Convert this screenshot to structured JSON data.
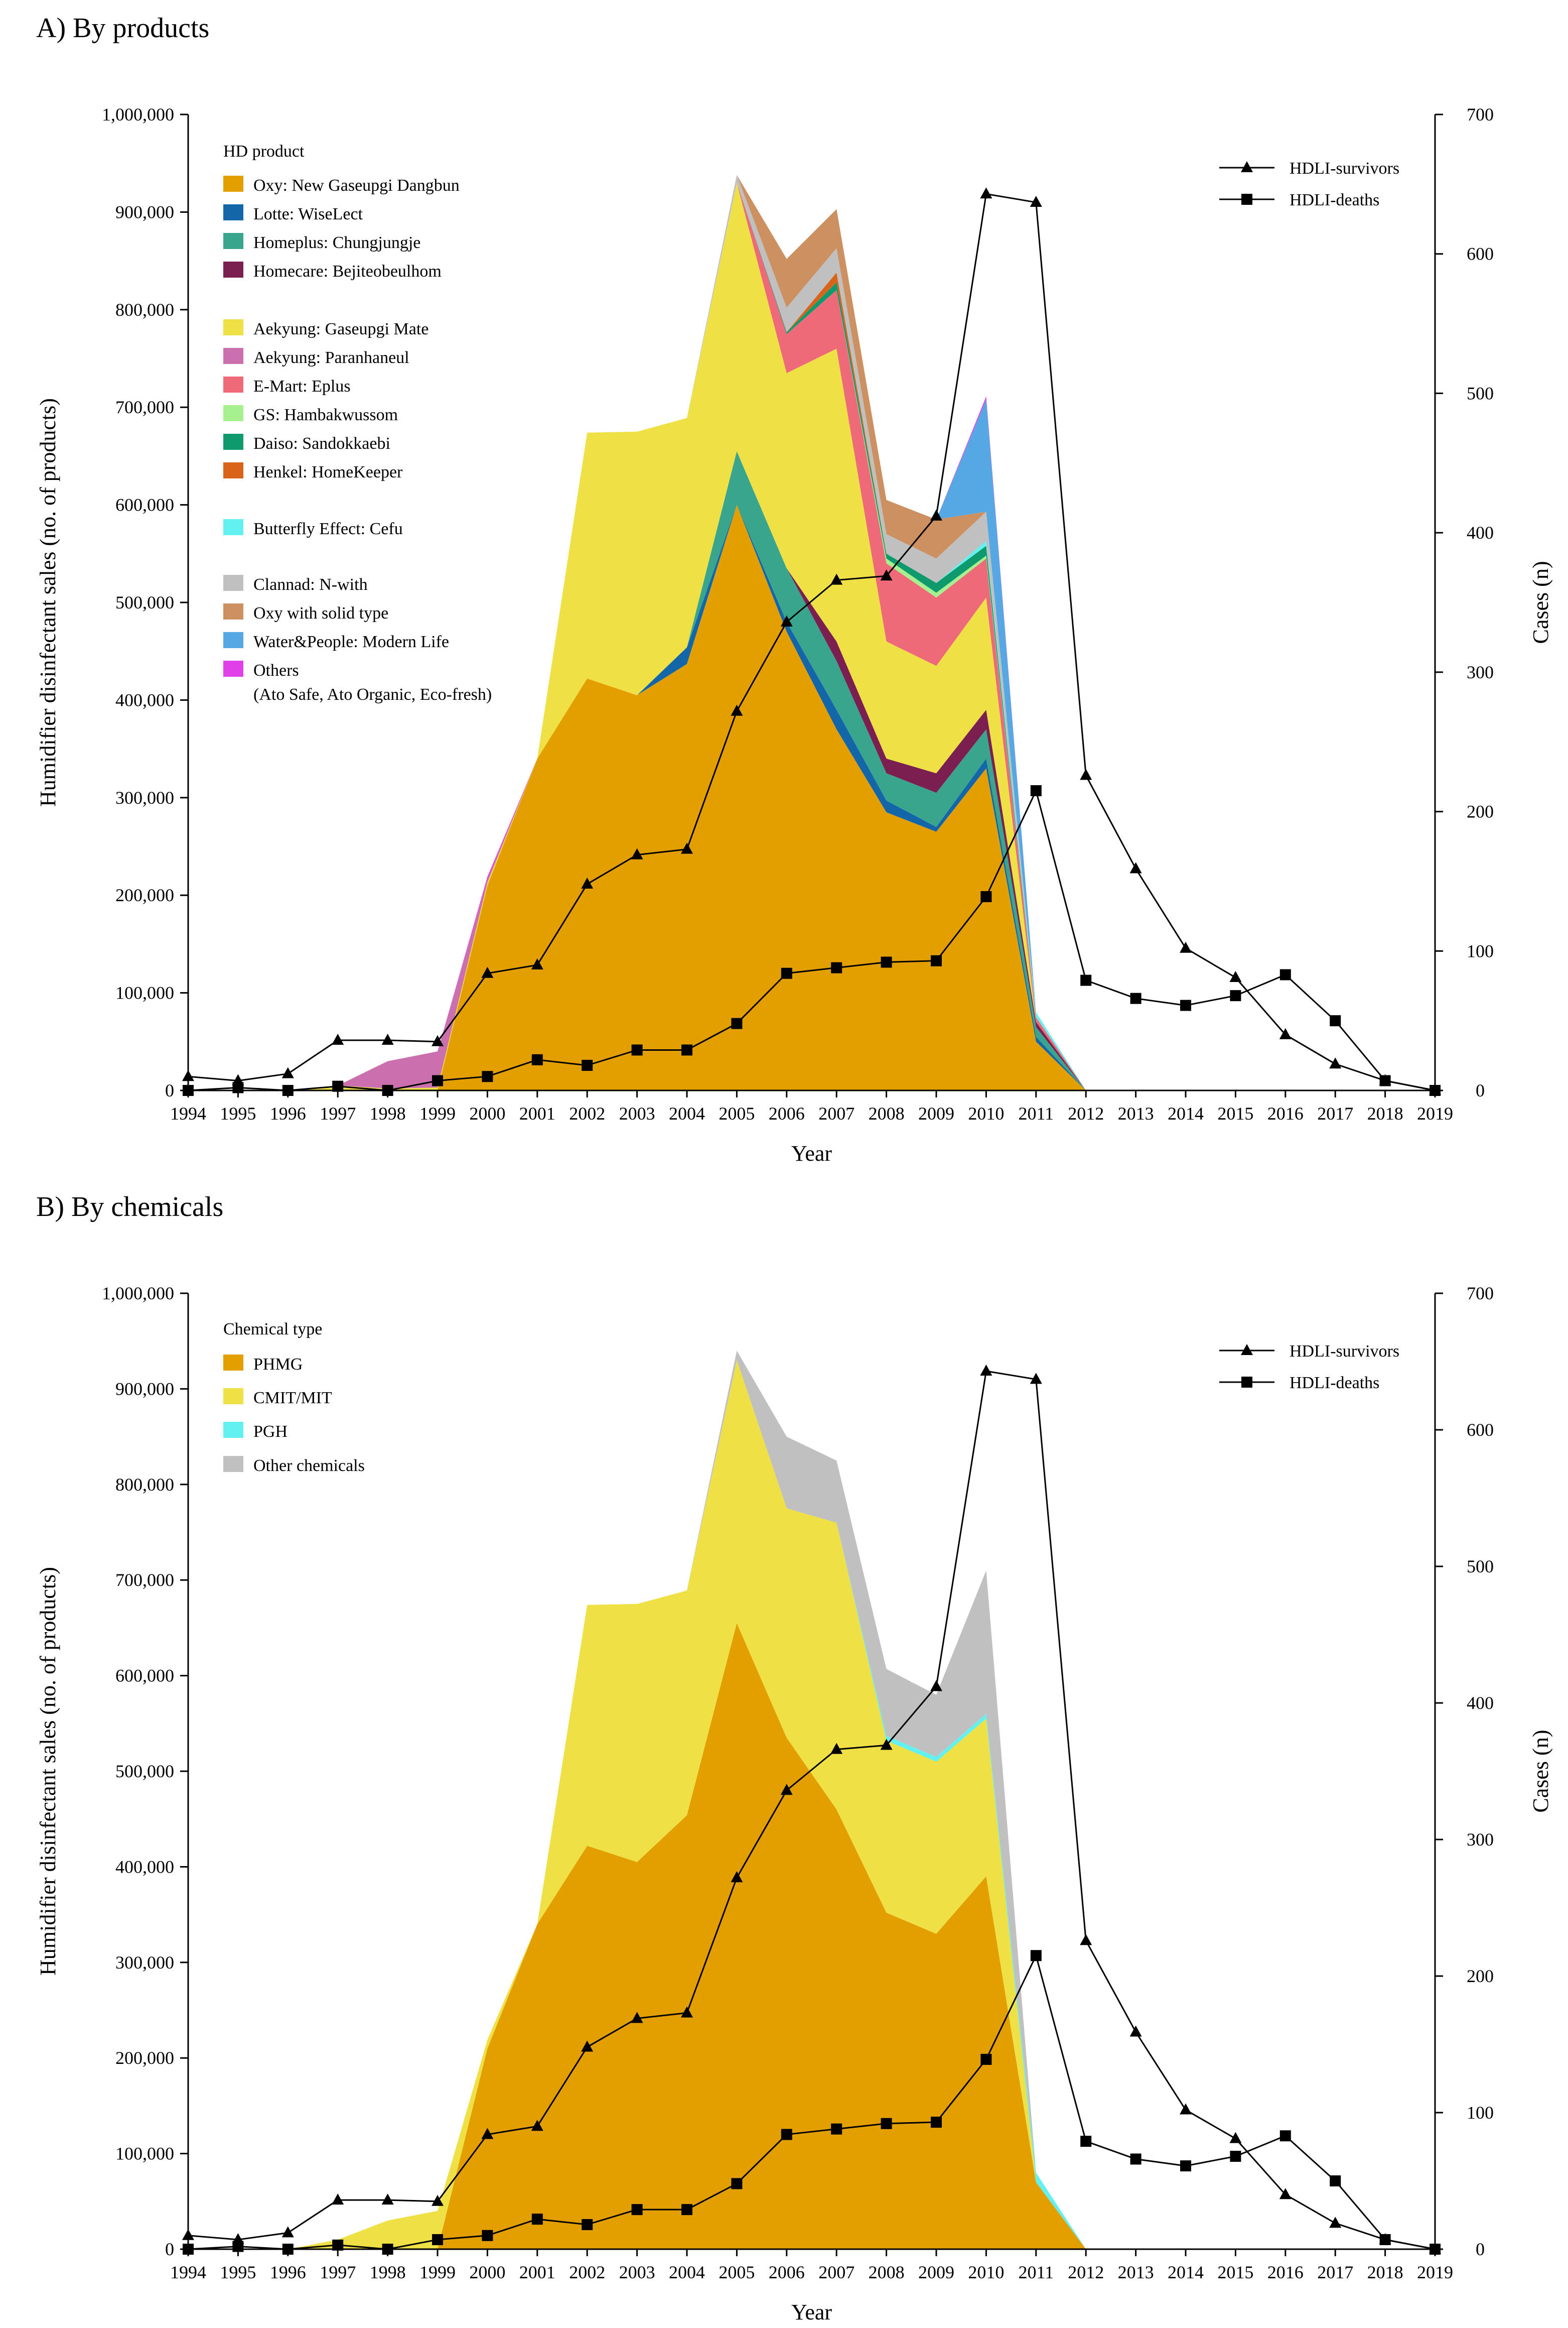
{
  "chart_data": [
    {
      "panel_title": "A) By products",
      "type": "area",
      "stacked": true,
      "xlabel": "Year",
      "ylabel": "Humidifier disinfectant sales (no. of products)",
      "y2label": "Cases (n)",
      "ylim": [
        0,
        1000000
      ],
      "y2lim": [
        0,
        700
      ],
      "yticks": [
        "0",
        "100,000",
        "200,000",
        "300,000",
        "400,000",
        "500,000",
        "600,000",
        "700,000",
        "800,000",
        "900,000",
        "1,000,000"
      ],
      "y2ticks": [
        "0",
        "100",
        "200",
        "300",
        "400",
        "500",
        "600",
        "700"
      ],
      "x": [
        "1994",
        "1995",
        "1996",
        "1997",
        "1998",
        "1999",
        "2000",
        "2001",
        "2002",
        "2003",
        "2004",
        "2005",
        "2006",
        "2007",
        "2008",
        "2009",
        "2010",
        "2011",
        "2012",
        "2013",
        "2014",
        "2015",
        "2016",
        "2017",
        "2018",
        "2019"
      ],
      "legend_title": "HD product",
      "series": [
        {
          "name": "Oxy: New Gaseupgi Dangbun",
          "color": "#e39f00",
          "values": [
            0,
            0,
            0,
            0,
            0,
            0,
            210000,
            340000,
            422000,
            405000,
            437000,
            600000,
            470000,
            370000,
            285000,
            265000,
            330000,
            50000,
            0,
            0,
            0,
            0,
            0,
            0,
            0,
            0
          ]
        },
        {
          "name": "Lotte: WiseLect",
          "color": "#1366a8",
          "values": [
            0,
            0,
            0,
            0,
            0,
            0,
            0,
            0,
            0,
            0,
            17000,
            0,
            10000,
            20000,
            12000,
            5000,
            10000,
            5000,
            0,
            0,
            0,
            0,
            0,
            0,
            0,
            0
          ]
        },
        {
          "name": "Homeplus: Chungjungje",
          "color": "#3aa58d",
          "values": [
            0,
            0,
            0,
            0,
            0,
            0,
            0,
            0,
            0,
            0,
            0,
            55000,
            55000,
            50000,
            28000,
            35000,
            30000,
            10000,
            0,
            0,
            0,
            0,
            0,
            0,
            0,
            0
          ]
        },
        {
          "name": "Homecare: Bejiteobeulhom",
          "color": "#7a1f50",
          "values": [
            0,
            0,
            0,
            0,
            0,
            0,
            0,
            0,
            0,
            0,
            0,
            0,
            0,
            20000,
            15000,
            20000,
            20000,
            5000,
            0,
            0,
            0,
            0,
            0,
            0,
            0,
            0
          ]
        },
        {
          "name": "Aekyung: Gaseupgi Mate",
          "color": "#efe145",
          "values": [
            0,
            0,
            0,
            5000,
            2000,
            3000,
            3000,
            0,
            252000,
            270000,
            235000,
            275000,
            200000,
            300000,
            120000,
            110000,
            115000,
            0,
            0,
            0,
            0,
            0,
            0,
            0,
            0,
            0
          ]
        },
        {
          "name": "Aekyung: Paranhaneul",
          "color": "#cc6faf",
          "values": [
            0,
            0,
            0,
            0,
            28000,
            37000,
            3000,
            0,
            0,
            0,
            0,
            0,
            0,
            0,
            0,
            0,
            0,
            0,
            0,
            0,
            0,
            0,
            0,
            0,
            0,
            0
          ]
        },
        {
          "name": "E-Mart: Eplus",
          "color": "#ee6a78",
          "values": [
            0,
            0,
            0,
            0,
            0,
            0,
            0,
            0,
            0,
            0,
            0,
            0,
            40000,
            60000,
            80000,
            70000,
            40000,
            5000,
            0,
            0,
            0,
            0,
            0,
            0,
            0,
            0
          ]
        },
        {
          "name": "GS: Hambakwussom",
          "color": "#a6f08f",
          "values": [
            0,
            0,
            0,
            0,
            0,
            0,
            0,
            0,
            0,
            0,
            0,
            0,
            0,
            0,
            5000,
            5000,
            3000,
            0,
            0,
            0,
            0,
            0,
            0,
            0,
            0,
            0
          ]
        },
        {
          "name": "Daiso: Sandokkaebi",
          "color": "#0f9a6d",
          "values": [
            0,
            0,
            0,
            0,
            0,
            0,
            0,
            0,
            0,
            0,
            0,
            0,
            2000,
            8000,
            5000,
            10000,
            10000,
            0,
            0,
            0,
            0,
            0,
            0,
            0,
            0,
            0
          ]
        },
        {
          "name": "Henkel: HomeKeeper",
          "color": "#d96419",
          "values": [
            0,
            0,
            0,
            0,
            0,
            0,
            0,
            0,
            0,
            0,
            0,
            0,
            0,
            10000,
            0,
            0,
            0,
            0,
            0,
            0,
            0,
            0,
            0,
            0,
            0,
            0
          ]
        },
        {
          "name": "Butterfly Effect: Cefu",
          "color": "#62f0f0",
          "values": [
            0,
            0,
            0,
            0,
            0,
            0,
            0,
            0,
            0,
            0,
            0,
            0,
            0,
            0,
            0,
            0,
            5000,
            5000,
            0,
            0,
            0,
            0,
            0,
            0,
            0,
            0
          ]
        },
        {
          "name": "Clannad: N-with",
          "color": "#c0c0c0",
          "values": [
            0,
            0,
            0,
            0,
            0,
            0,
            0,
            0,
            0,
            0,
            0,
            8000,
            25000,
            25000,
            20000,
            25000,
            30000,
            0,
            0,
            0,
            0,
            0,
            0,
            0,
            0,
            0
          ]
        },
        {
          "name": "Oxy with solid type",
          "color": "#cd9060",
          "values": [
            0,
            0,
            0,
            0,
            0,
            0,
            0,
            0,
            0,
            0,
            0,
            0,
            50000,
            40000,
            35000,
            40000,
            0,
            0,
            0,
            0,
            0,
            0,
            0,
            0,
            0,
            0
          ]
        },
        {
          "name": "Water&People: Modern Life",
          "color": "#55a8e4",
          "values": [
            0,
            0,
            0,
            0,
            0,
            0,
            0,
            0,
            0,
            0,
            0,
            0,
            0,
            0,
            0,
            0,
            115000,
            0,
            0,
            0,
            0,
            0,
            0,
            0,
            0,
            0
          ]
        },
        {
          "name": "Others",
          "color": "#e040e8",
          "values": [
            0,
            0,
            0,
            0,
            0,
            0,
            3000,
            0,
            0,
            0,
            0,
            0,
            0,
            0,
            0,
            0,
            3000,
            0,
            0,
            0,
            0,
            0,
            0,
            0,
            0,
            0
          ]
        }
      ],
      "legend_note": "(Ato Safe, Ato Organic, Eco-fresh)",
      "lines": [
        {
          "name": "HDLI-survivors",
          "marker": "triangle",
          "values": [
            10,
            7,
            12,
            36,
            36,
            35,
            84,
            90,
            148,
            169,
            173,
            272,
            336,
            366,
            369,
            412,
            643,
            637,
            226,
            159,
            102,
            81,
            40,
            19,
            7,
            0
          ]
        },
        {
          "name": "HDLI-deaths",
          "marker": "square",
          "values": [
            0,
            2,
            0,
            3,
            0,
            7,
            10,
            22,
            18,
            29,
            29,
            48,
            84,
            88,
            92,
            93,
            139,
            215,
            79,
            66,
            61,
            68,
            83,
            50,
            7,
            0
          ]
        }
      ]
    },
    {
      "panel_title": "B) By chemicals",
      "type": "area",
      "stacked": true,
      "xlabel": "Year",
      "ylabel": "Humidifier disinfectant sales (no. of products)",
      "y2label": "Cases (n)",
      "ylim": [
        0,
        1000000
      ],
      "y2lim": [
        0,
        700
      ],
      "yticks": [
        "0",
        "100,000",
        "200,000",
        "300,000",
        "400,000",
        "500,000",
        "600,000",
        "700,000",
        "800,000",
        "900,000",
        "1,000,000"
      ],
      "y2ticks": [
        "0",
        "100",
        "200",
        "300",
        "400",
        "500",
        "600",
        "700"
      ],
      "x": [
        "1994",
        "1995",
        "1996",
        "1997",
        "1998",
        "1999",
        "2000",
        "2001",
        "2002",
        "2003",
        "2004",
        "2005",
        "2006",
        "2007",
        "2008",
        "2009",
        "2010",
        "2011",
        "2012",
        "2013",
        "2014",
        "2015",
        "2016",
        "2017",
        "2018",
        "2019"
      ],
      "legend_title": "Chemical type",
      "series": [
        {
          "name": "PHMG",
          "color": "#e39f00",
          "values": [
            0,
            0,
            0,
            0,
            0,
            0,
            210000,
            340000,
            422000,
            405000,
            454000,
            655000,
            535000,
            460000,
            352000,
            330000,
            390000,
            70000,
            0,
            0,
            0,
            0,
            0,
            0,
            0,
            0
          ]
        },
        {
          "name": "CMIT/MIT",
          "color": "#efe145",
          "values": [
            0,
            0,
            0,
            10000,
            30000,
            40000,
            9000,
            0,
            252000,
            270000,
            235000,
            275000,
            240000,
            300000,
            180000,
            180000,
            165000,
            0,
            0,
            0,
            0,
            0,
            0,
            0,
            0,
            0
          ]
        },
        {
          "name": "PGH",
          "color": "#62f0f0",
          "values": [
            0,
            0,
            0,
            0,
            0,
            0,
            0,
            0,
            0,
            0,
            0,
            0,
            0,
            0,
            5000,
            5000,
            5000,
            10000,
            0,
            0,
            0,
            0,
            0,
            0,
            0,
            0
          ]
        },
        {
          "name": "Other chemicals",
          "color": "#c0c0c0",
          "values": [
            0,
            0,
            0,
            0,
            0,
            0,
            0,
            0,
            0,
            0,
            0,
            10000,
            75000,
            65000,
            70000,
            65000,
            150000,
            0,
            0,
            0,
            0,
            0,
            0,
            0,
            0,
            0
          ]
        }
      ],
      "lines": [
        {
          "name": "HDLI-survivors",
          "marker": "triangle",
          "values": [
            10,
            7,
            12,
            36,
            36,
            35,
            84,
            90,
            148,
            169,
            173,
            272,
            336,
            366,
            369,
            412,
            643,
            637,
            226,
            159,
            102,
            81,
            40,
            19,
            7,
            0
          ]
        },
        {
          "name": "HDLI-deaths",
          "marker": "square",
          "values": [
            0,
            2,
            0,
            3,
            0,
            7,
            10,
            22,
            18,
            29,
            29,
            48,
            84,
            88,
            92,
            93,
            139,
            215,
            79,
            66,
            61,
            68,
            83,
            50,
            7,
            0
          ]
        }
      ]
    }
  ]
}
